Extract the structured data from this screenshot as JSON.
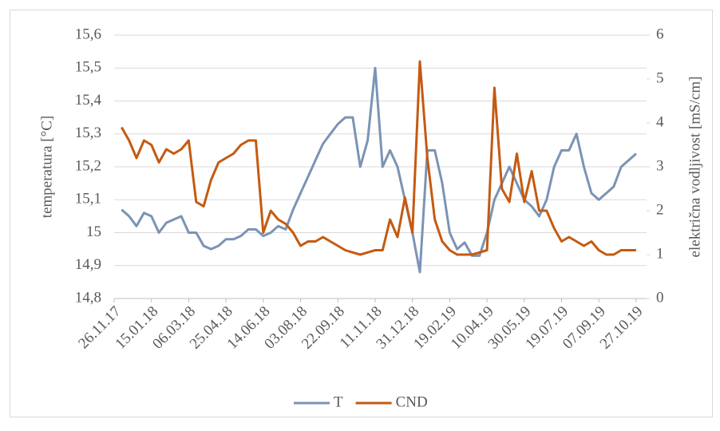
{
  "chart_data": {
    "type": "line",
    "x": [
      "2017-12-06",
      "2017-12-16",
      "2017-12-26",
      "2018-01-05",
      "2018-01-15",
      "2018-01-25",
      "2018-02-04",
      "2018-02-14",
      "2018-02-24",
      "2018-03-06",
      "2018-03-16",
      "2018-03-26",
      "2018-04-05",
      "2018-04-15",
      "2018-04-25",
      "2018-05-05",
      "2018-05-15",
      "2018-05-25",
      "2018-06-04",
      "2018-06-14",
      "2018-06-24",
      "2018-07-04",
      "2018-07-14",
      "2018-07-24",
      "2018-08-03",
      "2018-08-13",
      "2018-08-23",
      "2018-09-02",
      "2018-09-12",
      "2018-09-22",
      "2018-10-02",
      "2018-10-12",
      "2018-10-22",
      "2018-11-01",
      "2018-11-11",
      "2018-11-21",
      "2018-12-01",
      "2018-12-11",
      "2018-12-21",
      "2018-12-31",
      "2019-01-10",
      "2019-01-20",
      "2019-01-30",
      "2019-02-09",
      "2019-02-19",
      "2019-03-01",
      "2019-03-11",
      "2019-03-21",
      "2019-03-31",
      "2019-04-10",
      "2019-04-20",
      "2019-04-30",
      "2019-05-10",
      "2019-05-20",
      "2019-05-30",
      "2019-06-09",
      "2019-06-19",
      "2019-06-29",
      "2019-07-09",
      "2019-07-19",
      "2019-07-29",
      "2019-08-08",
      "2019-08-18",
      "2019-08-28",
      "2019-09-07",
      "2019-09-17",
      "2019-09-27",
      "2019-10-07",
      "2019-10-17",
      "2019-10-27"
    ],
    "xlim": [
      "2017-11-26",
      "2019-11-10"
    ],
    "xticks": [
      {
        "value": "2017-11-26",
        "label": "26.11.17"
      },
      {
        "value": "2018-01-15",
        "label": "15.01.18"
      },
      {
        "value": "2018-03-06",
        "label": "06.03.18"
      },
      {
        "value": "2018-04-25",
        "label": "25.04.18"
      },
      {
        "value": "2018-06-14",
        "label": "14.06.18"
      },
      {
        "value": "2018-08-03",
        "label": "03.08.18"
      },
      {
        "value": "2018-09-22",
        "label": "22.09.18"
      },
      {
        "value": "2018-11-11",
        "label": "11.11.18"
      },
      {
        "value": "2018-12-31",
        "label": "31.12.18"
      },
      {
        "value": "2019-02-19",
        "label": "19.02.19"
      },
      {
        "value": "2019-04-10",
        "label": "10.04.19"
      },
      {
        "value": "2019-05-30",
        "label": "30.05.19"
      },
      {
        "value": "2019-07-19",
        "label": "19.07.19"
      },
      {
        "value": "2019-09-07",
        "label": "07.09.19"
      },
      {
        "value": "2019-10-27",
        "label": "27.10.19"
      }
    ],
    "ylabel": "temperatura [°C]",
    "y2label": "električna vodljivost [mS/cm]",
    "ylim": [
      14.8,
      15.6
    ],
    "yticks": [
      {
        "value": 14.8,
        "label": "14,8"
      },
      {
        "value": 14.9,
        "label": "14,9"
      },
      15,
      {
        "value": 15.1,
        "label": "15,1"
      },
      {
        "value": 15.2,
        "label": "15,2"
      },
      {
        "value": 15.3,
        "label": "15,3"
      },
      {
        "value": 15.4,
        "label": "15,4"
      },
      {
        "value": 15.5,
        "label": "15,5"
      },
      {
        "value": 15.6,
        "label": "15,6"
      }
    ],
    "y2lim": [
      0,
      6
    ],
    "y2ticks": [
      0,
      1,
      2,
      3,
      4,
      5,
      6
    ],
    "grid": true,
    "legend": "bottom",
    "series": [
      {
        "name": "T",
        "color": "#7b93b5",
        "values": [
          15.07,
          15.05,
          15.02,
          15.06,
          15.05,
          15.0,
          15.03,
          15.04,
          15.05,
          15.0,
          15.0,
          14.96,
          14.95,
          14.96,
          14.98,
          14.98,
          14.99,
          15.01,
          15.01,
          14.99,
          15.0,
          15.02,
          15.01,
          15.07,
          15.12,
          15.17,
          15.22,
          15.27,
          15.3,
          15.33,
          15.35,
          15.35,
          15.2,
          15.28,
          15.5,
          15.2,
          15.25,
          15.2,
          15.1,
          15.0,
          14.88,
          15.25,
          15.25,
          15.15,
          15.0,
          14.95,
          14.97,
          14.93,
          14.93,
          15.0,
          15.1,
          15.15,
          15.2,
          15.15,
          15.1,
          15.08,
          15.05,
          15.1,
          15.2,
          15.25,
          15.25,
          15.3,
          15.2,
          15.12,
          15.1,
          15.12,
          15.14,
          15.2,
          15.22,
          15.24
        ]
      },
      {
        "name": "CND",
        "color": "#c55a11",
        "axis": "y2",
        "values": [
          3.9,
          3.6,
          3.2,
          3.6,
          3.5,
          3.1,
          3.4,
          3.3,
          3.4,
          3.6,
          2.2,
          2.1,
          2.7,
          3.1,
          3.2,
          3.3,
          3.5,
          3.6,
          3.6,
          1.5,
          2.0,
          1.8,
          1.7,
          1.5,
          1.2,
          1.3,
          1.3,
          1.4,
          1.3,
          1.2,
          1.1,
          1.05,
          1.0,
          1.05,
          1.1,
          1.1,
          1.8,
          1.4,
          2.3,
          1.5,
          5.4,
          3.2,
          1.8,
          1.3,
          1.1,
          1.0,
          1.0,
          1.0,
          1.05,
          1.1,
          4.8,
          2.5,
          2.2,
          3.3,
          2.2,
          2.9,
          2.0,
          2.0,
          1.6,
          1.3,
          1.4,
          1.3,
          1.2,
          1.3,
          1.1,
          1.0,
          1.0,
          1.1,
          1.1,
          1.1
        ]
      }
    ]
  }
}
